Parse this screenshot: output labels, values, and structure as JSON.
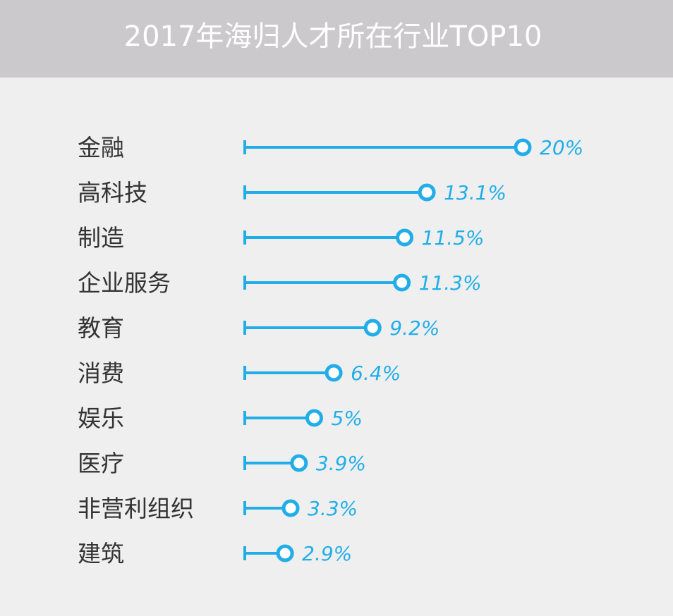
{
  "chart_data": {
    "type": "bar",
    "title": "2017年海归人才所在行业TOP10",
    "categories": [
      "金融",
      "高科技",
      "制造",
      "企业服务",
      "教育",
      "消费",
      "娱乐",
      "医疗",
      "非营利组织",
      "建筑"
    ],
    "values": [
      20,
      13.1,
      11.5,
      11.3,
      9.2,
      6.4,
      5,
      3.9,
      3.3,
      2.9
    ],
    "value_labels": [
      "20%",
      "13.1%",
      "11.5%",
      "11.3%",
      "9.2%",
      "6.4%",
      "5%",
      "3.9%",
      "3.3%",
      "2.9%"
    ],
    "unit": "%",
    "orientation": "horizontal",
    "style": "lollipop",
    "xlim": [
      0,
      20
    ],
    "grid": false,
    "colors": {
      "header_bg": "#cbc9cc",
      "background": "#efeff0",
      "accent": "#21aee8",
      "label": "#333333",
      "title": "#ffffff"
    }
  }
}
